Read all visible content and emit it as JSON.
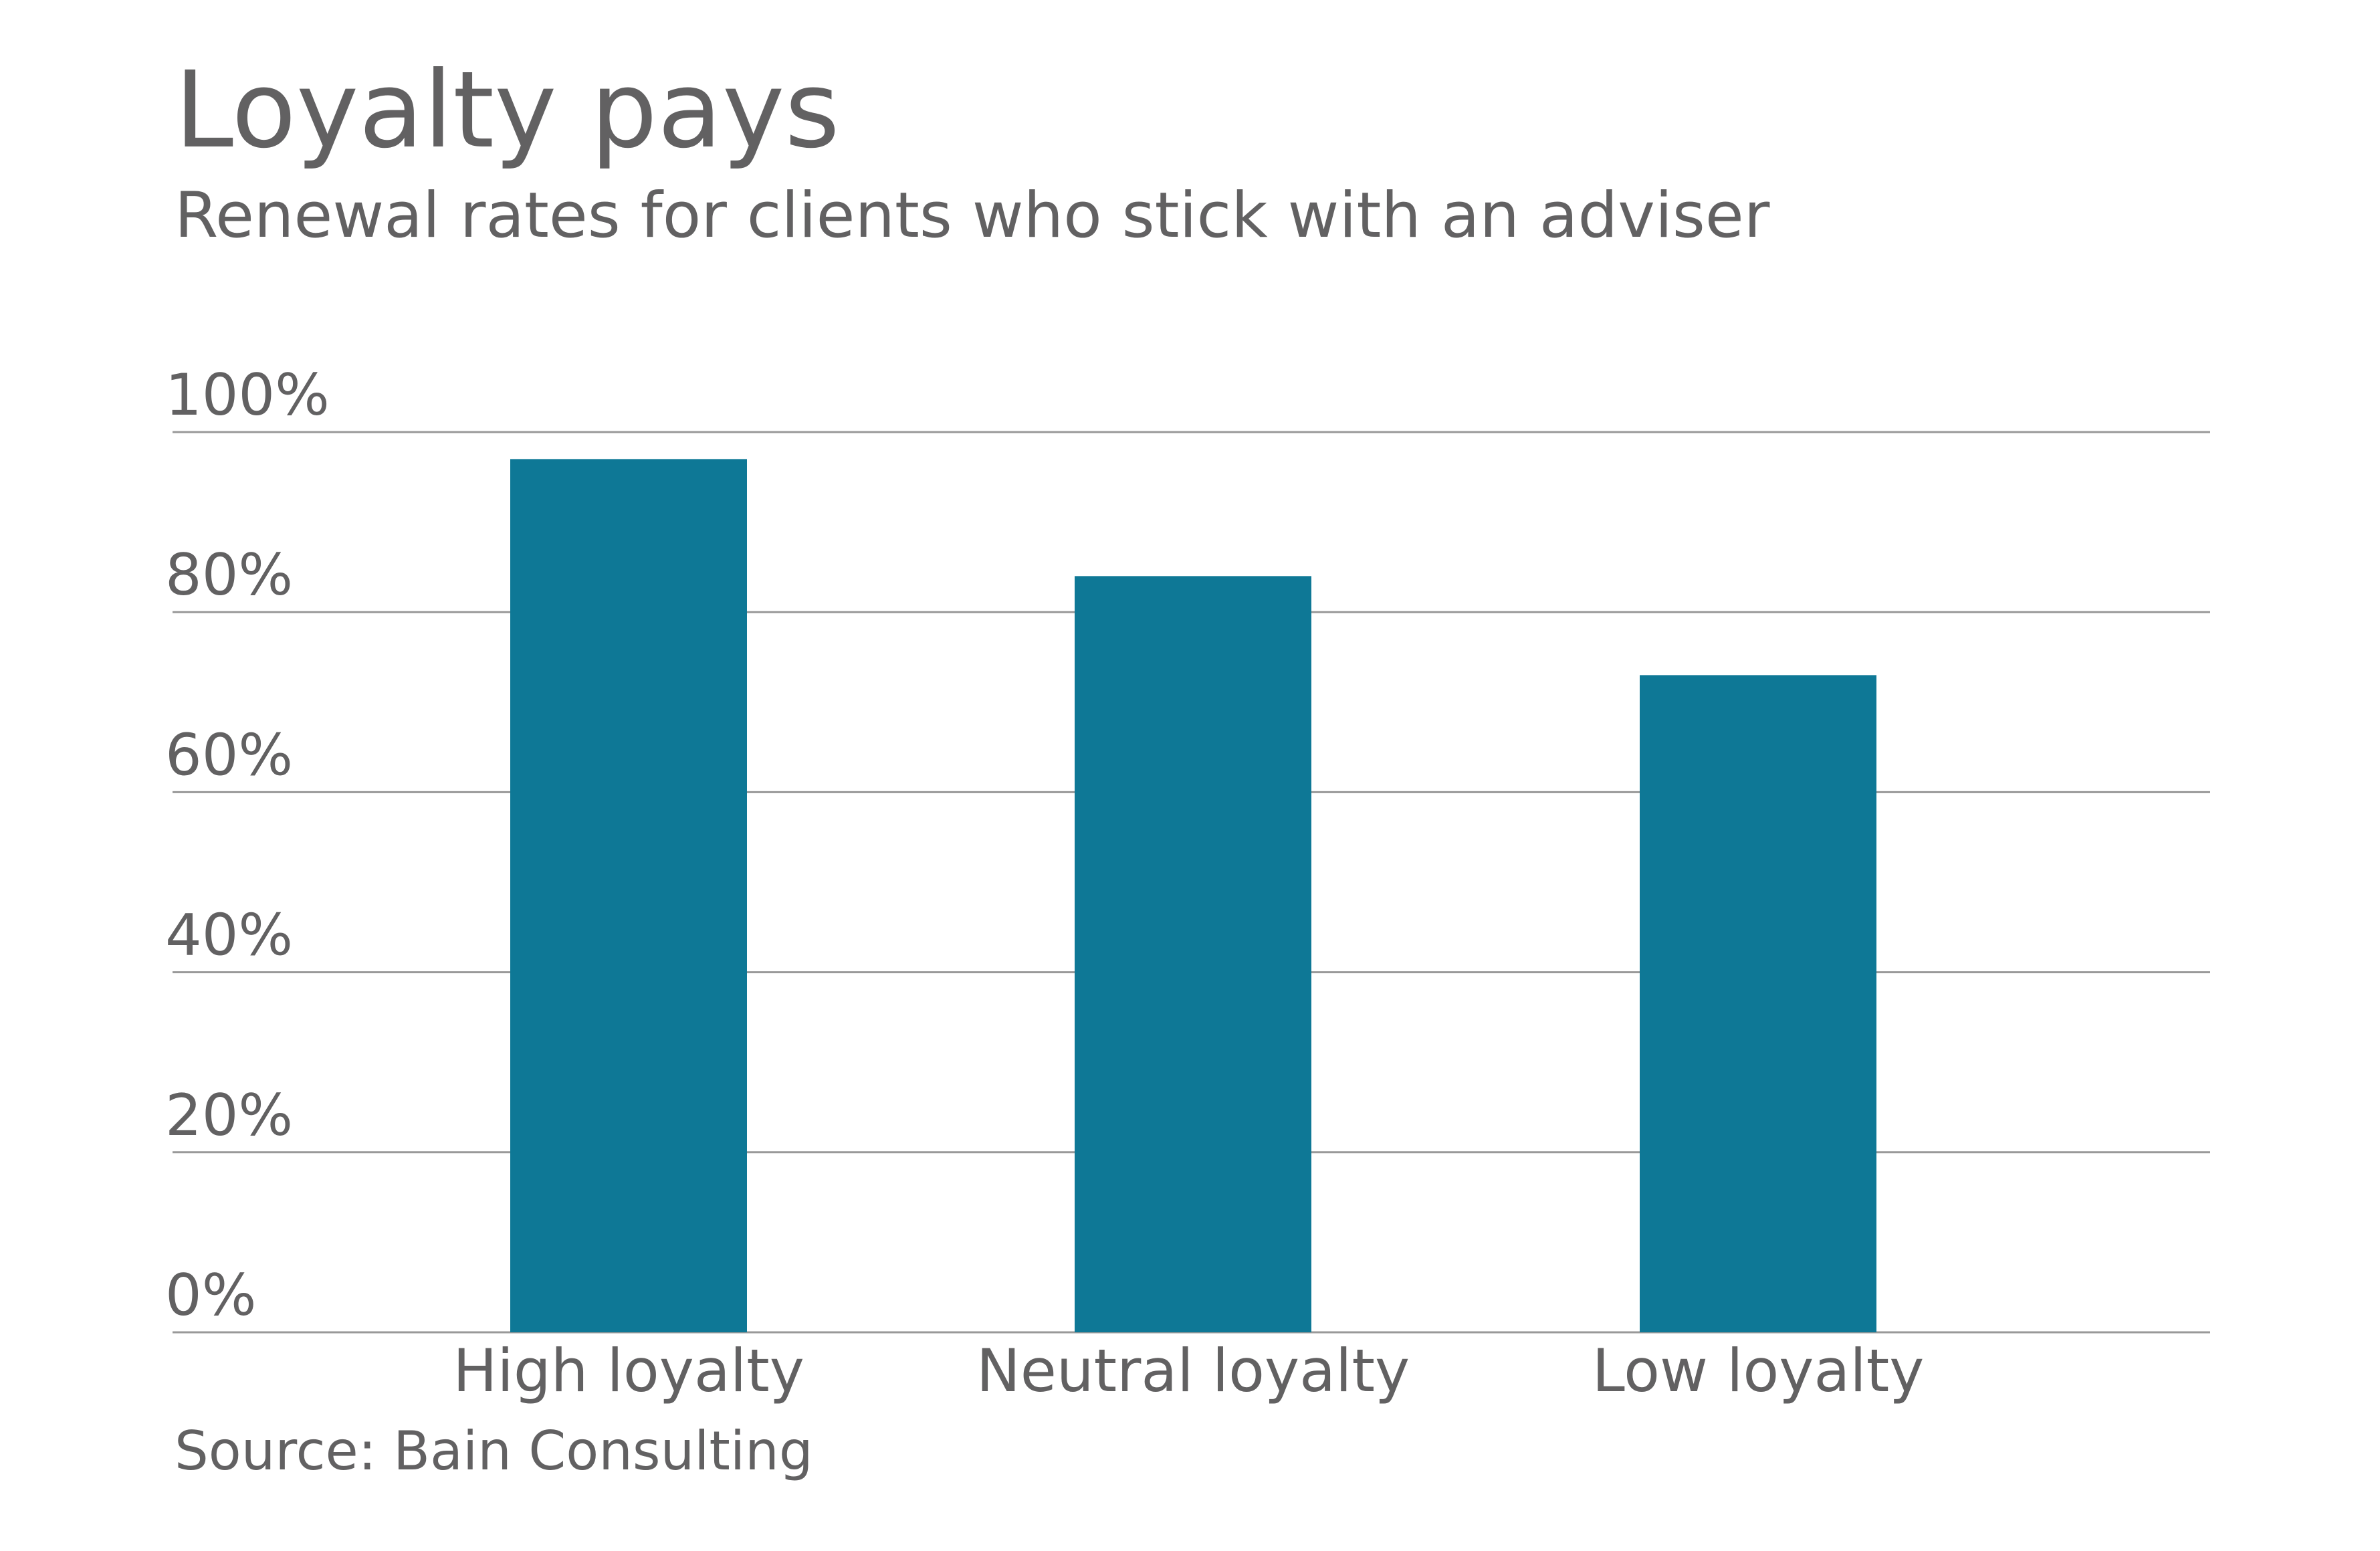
{
  "title": "Loyalty pays",
  "subtitle": "Renewal rates for clients who stick with an adviser",
  "source": "Source: Bain Consulting",
  "colors": {
    "bar": "#0e7896",
    "grid": "#999999",
    "text": "#626162",
    "background": "#ffffff"
  },
  "chart_data": {
    "type": "bar",
    "title": "Loyalty pays",
    "subtitle": "Renewal rates for clients who stick with an adviser",
    "categories": [
      "High loyalty",
      "Neutral loyalty",
      "Low loyalty"
    ],
    "values": [
      97,
      84,
      73
    ],
    "ylim": [
      0,
      100
    ],
    "yticks": [
      0,
      20,
      40,
      60,
      80,
      100
    ],
    "ytick_labels": [
      "0%",
      "20%",
      "40%",
      "60%",
      "80%",
      "100%"
    ],
    "xlabel": "",
    "ylabel": "",
    "grid": true,
    "legend": "none"
  }
}
